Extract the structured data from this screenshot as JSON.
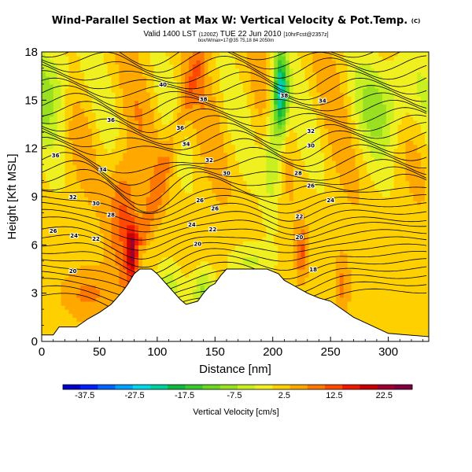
{
  "title": "Wind-Parallel Section at Max W: Vertical Velocity & Pot.Temp.",
  "title_suffix": "(C)",
  "subtitle_main": "Valid 1400 LST",
  "subtitle_utc": "(1200Z)",
  "subtitle_date": "TUE 22 Jun 2010",
  "subtitle_run": "[10hrFcst@2357z]",
  "subsubtitle": "box/Wmax=17@35 75,18 84 2050m",
  "chart_data": {
    "type": "heatmap",
    "xlabel": "Distance [nm]",
    "ylabel": "Height [Kft MSL]",
    "xlim": [
      0,
      335
    ],
    "ylim": [
      0,
      18
    ],
    "x_ticks": [
      0,
      50,
      100,
      150,
      200,
      250,
      300
    ],
    "y_ticks": [
      0,
      3,
      6,
      9,
      12,
      15,
      18
    ],
    "colorbar": {
      "label": "Vertical Velocity [cm/s]",
      "tick_labels": [
        "-37.5",
        "-27.5",
        "-17.5",
        "-7.5",
        "2.5",
        "12.5",
        "22.5"
      ],
      "range": [
        -40,
        30
      ],
      "colors": [
        "#0000c8",
        "#0020ff",
        "#0064ff",
        "#00a0ff",
        "#00d8e8",
        "#00d0a0",
        "#10b840",
        "#38c830",
        "#68d820",
        "#98e020",
        "#c8f020",
        "#f0f020",
        "#ffd000",
        "#ffa800",
        "#ff7800",
        "#ff4800",
        "#f01800",
        "#c80000",
        "#a00030",
        "#800040"
      ]
    },
    "terrain_kft": [
      [
        0,
        0.4
      ],
      [
        10,
        0.4
      ],
      [
        15,
        0.9
      ],
      [
        30,
        0.9
      ],
      [
        40,
        1.4
      ],
      [
        50,
        1.8
      ],
      [
        60,
        2.3
      ],
      [
        65,
        2.7
      ],
      [
        70,
        3.1
      ],
      [
        75,
        3.6
      ],
      [
        80,
        4.2
      ],
      [
        85,
        4.5
      ],
      [
        95,
        4.5
      ],
      [
        100,
        4.2
      ],
      [
        105,
        3.8
      ],
      [
        110,
        3.4
      ],
      [
        115,
        3.0
      ],
      [
        120,
        2.6
      ],
      [
        125,
        2.3
      ],
      [
        135,
        2.5
      ],
      [
        140,
        3.0
      ],
      [
        145,
        3.4
      ],
      [
        150,
        3.6
      ],
      [
        155,
        4.1
      ],
      [
        160,
        4.5
      ],
      [
        195,
        4.5
      ],
      [
        205,
        4.2
      ],
      [
        210,
        3.8
      ],
      [
        220,
        3.4
      ],
      [
        230,
        3.0
      ],
      [
        240,
        2.7
      ],
      [
        250,
        2.5
      ],
      [
        260,
        2.0
      ],
      [
        270,
        1.5
      ],
      [
        285,
        1.0
      ],
      [
        300,
        0.5
      ],
      [
        335,
        0.3
      ]
    ],
    "contour_labels": [
      {
        "x": 105,
        "y": 16.0,
        "text": "40"
      },
      {
        "x": 140,
        "y": 15.1,
        "text": "38"
      },
      {
        "x": 60,
        "y": 13.8,
        "text": "36"
      },
      {
        "x": 120,
        "y": 13.3,
        "text": "36"
      },
      {
        "x": 210,
        "y": 15.3,
        "text": "38"
      },
      {
        "x": 243,
        "y": 15.0,
        "text": "34"
      },
      {
        "x": 233,
        "y": 13.1,
        "text": "32"
      },
      {
        "x": 12,
        "y": 11.6,
        "text": "36"
      },
      {
        "x": 125,
        "y": 12.3,
        "text": "34"
      },
      {
        "x": 145,
        "y": 11.3,
        "text": "32"
      },
      {
        "x": 53,
        "y": 10.7,
        "text": "34"
      },
      {
        "x": 160,
        "y": 10.5,
        "text": "30"
      },
      {
        "x": 222,
        "y": 10.5,
        "text": "28"
      },
      {
        "x": 233,
        "y": 12.2,
        "text": "30"
      },
      {
        "x": 27,
        "y": 9.0,
        "text": "32"
      },
      {
        "x": 47,
        "y": 8.6,
        "text": "30"
      },
      {
        "x": 60,
        "y": 7.9,
        "text": "28"
      },
      {
        "x": 137,
        "y": 8.8,
        "text": "26"
      },
      {
        "x": 150,
        "y": 8.3,
        "text": "26"
      },
      {
        "x": 233,
        "y": 9.7,
        "text": "26"
      },
      {
        "x": 250,
        "y": 8.8,
        "text": "24"
      },
      {
        "x": 10,
        "y": 6.9,
        "text": "26"
      },
      {
        "x": 28,
        "y": 6.6,
        "text": "24"
      },
      {
        "x": 47,
        "y": 6.4,
        "text": "22"
      },
      {
        "x": 130,
        "y": 7.3,
        "text": "24"
      },
      {
        "x": 148,
        "y": 7.0,
        "text": "22"
      },
      {
        "x": 223,
        "y": 7.8,
        "text": "22"
      },
      {
        "x": 223,
        "y": 6.5,
        "text": "20"
      },
      {
        "x": 135,
        "y": 6.1,
        "text": "20"
      },
      {
        "x": 27,
        "y": 4.4,
        "text": "20"
      },
      {
        "x": 235,
        "y": 4.5,
        "text": "18"
      }
    ]
  }
}
